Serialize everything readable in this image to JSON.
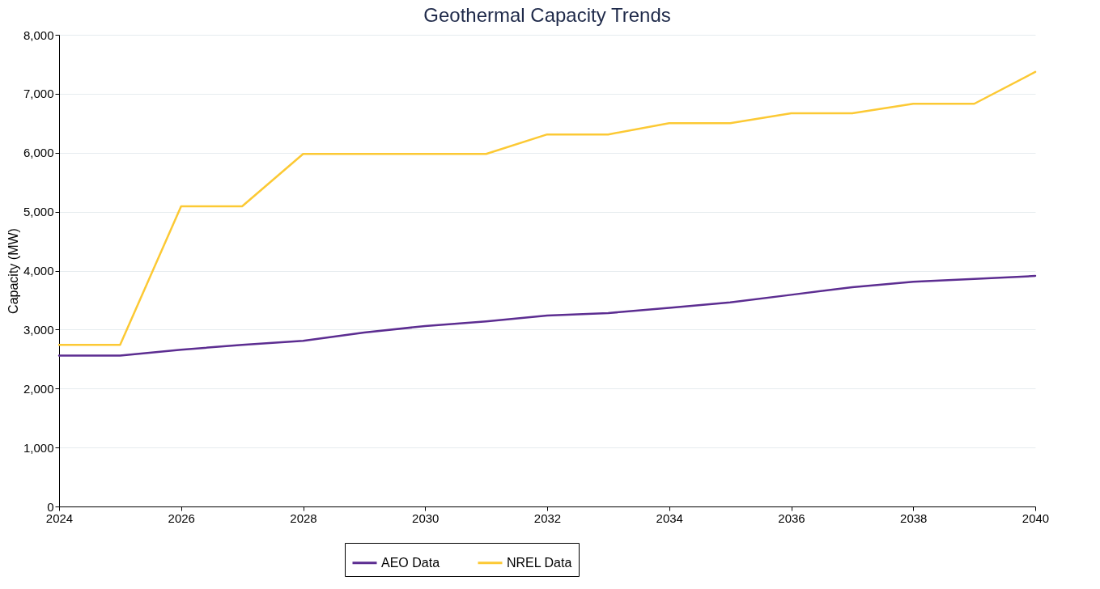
{
  "chart_data": {
    "type": "line",
    "title": "Geothermal Capacity Trends",
    "ylabel": "Capacity (MW)",
    "x": [
      2024,
      2025,
      2026,
      2027,
      2028,
      2029,
      2030,
      2031,
      2032,
      2033,
      2034,
      2035,
      2036,
      2037,
      2038,
      2039,
      2040
    ],
    "series": [
      {
        "name": "AEO Data",
        "color": "#5c2d91",
        "values": [
          2560,
          2560,
          2660,
          2740,
          2810,
          2950,
          3060,
          3140,
          3240,
          3280,
          3370,
          3460,
          3590,
          3720,
          3810,
          3860,
          3910
        ]
      },
      {
        "name": "NREL Data",
        "color": "#fcc934",
        "values": [
          2740,
          2740,
          5090,
          5090,
          5980,
          5980,
          5980,
          5980,
          6310,
          6310,
          6500,
          6500,
          6670,
          6670,
          6830,
          6830,
          7370
        ]
      }
    ],
    "xlim": [
      2024,
      2040
    ],
    "xticks": [
      2024,
      2026,
      2028,
      2030,
      2032,
      2034,
      2036,
      2038,
      2040
    ],
    "ylim": [
      0,
      8000
    ],
    "yticks": [
      0,
      {
        "value": 1000,
        "label": "1,000"
      },
      {
        "value": 2000,
        "label": "2,000"
      },
      {
        "value": 3000,
        "label": "3,000"
      },
      {
        "value": 4000,
        "label": "4,000"
      },
      {
        "value": 5000,
        "label": "5,000"
      },
      {
        "value": 6000,
        "label": "6,000"
      },
      {
        "value": 7000,
        "label": "7,000"
      },
      {
        "value": 8000,
        "label": "8,000"
      }
    ],
    "grid": "y",
    "legend": "bottom",
    "line_style": "solid"
  }
}
